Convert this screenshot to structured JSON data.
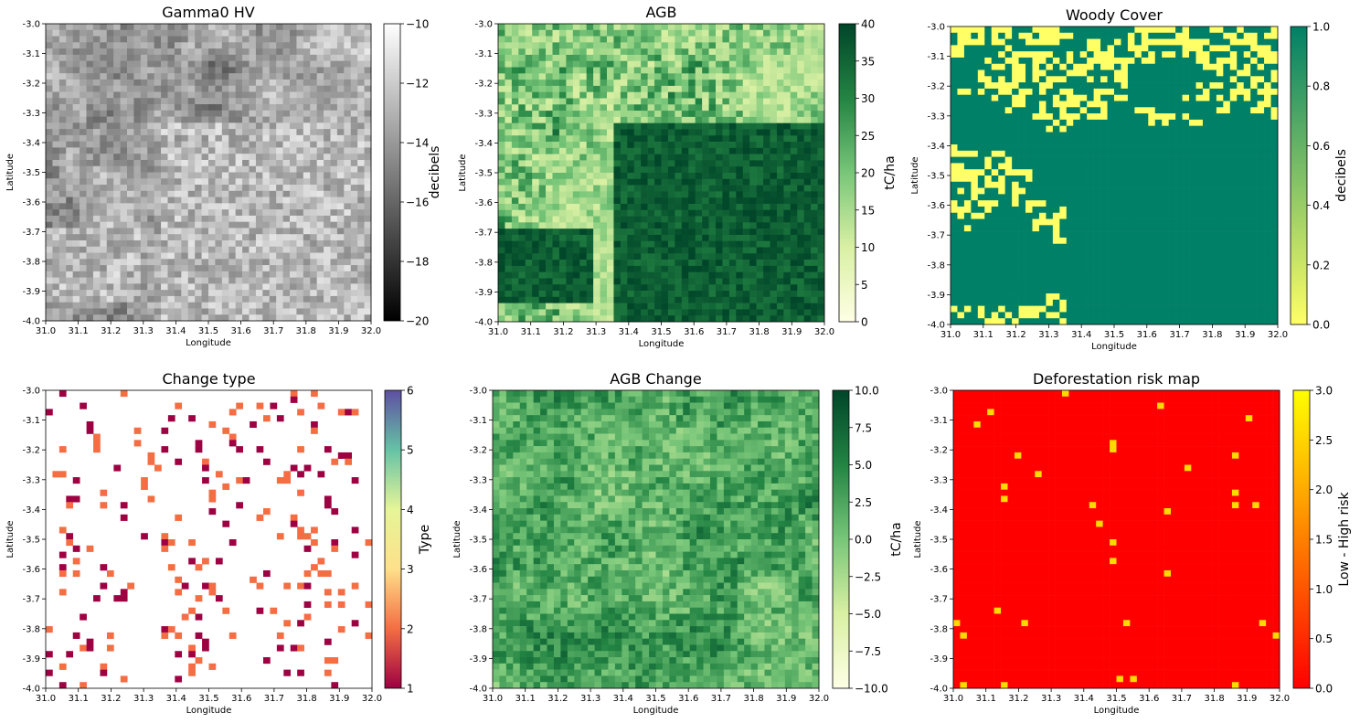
{
  "figure": {
    "panels": [
      {
        "title": "Gamma0 HV",
        "xlabel": "Longitude",
        "ylabel": "Latitude",
        "colorbar": {
          "label": "decibels",
          "min": -20,
          "max": -10,
          "ticks": [
            -20,
            -18,
            -16,
            -14,
            -12,
            -10
          ],
          "tick_labels": [
            "−20",
            "−18",
            "−16",
            "−14",
            "−12",
            "−10"
          ],
          "colormap": [
            "#000000",
            "#ffffff"
          ]
        }
      },
      {
        "title": "AGB",
        "xlabel": "Longitude",
        "ylabel": "Latitude",
        "colorbar": {
          "label": "tC/ha",
          "min": 0,
          "max": 40,
          "ticks": [
            0,
            5,
            10,
            15,
            20,
            25,
            30,
            35,
            40
          ],
          "tick_labels": [
            "0",
            "5",
            "10",
            "15",
            "20",
            "25",
            "30",
            "35",
            "40"
          ],
          "colormap": [
            "#ffffe5",
            "#d9f0a3",
            "#78c679",
            "#238443",
            "#004529"
          ]
        }
      },
      {
        "title": "Woody Cover",
        "xlabel": "Longitude",
        "ylabel": "Latitude",
        "colorbar": {
          "label": "decibels",
          "min": 0,
          "max": 1,
          "ticks": [
            0,
            0.2,
            0.4,
            0.6,
            0.8,
            1.0
          ],
          "tick_labels": [
            "0.0",
            "0.2",
            "0.4",
            "0.6",
            "0.8",
            "1.0"
          ],
          "colormap": [
            "#ffff66",
            "#008066"
          ]
        }
      },
      {
        "title": "Change type",
        "xlabel": "Longitude",
        "ylabel": "Latitude",
        "colorbar": {
          "label": "Type",
          "min": 1,
          "max": 6,
          "ticks": [
            1,
            2,
            3,
            4,
            5,
            6
          ],
          "tick_labels": [
            "1",
            "2",
            "3",
            "4",
            "5",
            "6"
          ],
          "colormap": [
            "#9e0142",
            "#f46d43",
            "#fee08b",
            "#e6f598",
            "#66c2a5",
            "#5e4fa2"
          ]
        }
      },
      {
        "title": "AGB Change",
        "xlabel": "Longitude",
        "ylabel": "Latitude",
        "colorbar": {
          "label": "tC/ha",
          "min": -10,
          "max": 10,
          "ticks": [
            -10,
            -7.5,
            -5,
            -2.5,
            0,
            2.5,
            5,
            7.5,
            10
          ],
          "tick_labels": [
            "−10.0",
            "−7.5",
            "−5.0",
            "−2.5",
            "0.0",
            "2.5",
            "5.0",
            "7.5",
            "10.0"
          ],
          "colormap": [
            "#ffffe5",
            "#d9f0a3",
            "#78c679",
            "#238443",
            "#004529"
          ]
        }
      },
      {
        "title": "Deforestation risk map",
        "xlabel": "Longitude",
        "ylabel": "Latitude",
        "colorbar": {
          "label": "Low - High risk",
          "min": 0,
          "max": 3,
          "ticks": [
            0,
            0.5,
            1.0,
            1.5,
            2.0,
            2.5,
            3.0
          ],
          "tick_labels": [
            "0.0",
            "0.5",
            "1.0",
            "1.5",
            "2.0",
            "2.5",
            "3.0"
          ],
          "colormap": [
            "#ff0000",
            "#ff8000",
            "#ffff00"
          ]
        }
      }
    ],
    "x_ticks": [
      31.0,
      31.1,
      31.2,
      31.3,
      31.4,
      31.5,
      31.6,
      31.7,
      31.8,
      31.9,
      32.0
    ],
    "x_tick_labels": [
      "31.0",
      "31.1",
      "31.2",
      "31.3",
      "31.4",
      "31.5",
      "31.6",
      "31.7",
      "31.8",
      "31.9",
      "32.0"
    ],
    "y_ticks": [
      -3.0,
      -3.1,
      -3.2,
      -3.3,
      -3.4,
      -3.5,
      -3.6,
      -3.7,
      -3.8,
      -3.9,
      -4.0
    ],
    "y_tick_labels": [
      "-3.0",
      "-3.1",
      "-3.2",
      "-3.3",
      "-3.4",
      "-3.5",
      "-3.6",
      "-3.7",
      "-3.8",
      "-3.9",
      "-4.0"
    ]
  },
  "chart_data": [
    {
      "type": "heatmap",
      "title": "Gamma0 HV",
      "xlabel": "Longitude",
      "ylabel": "Latitude",
      "xlim": [
        31.0,
        32.0
      ],
      "ylim": [
        -4.0,
        -3.0
      ],
      "value_range": [
        -20,
        -10
      ],
      "colorbar_label": "decibels"
    },
    {
      "type": "heatmap",
      "title": "AGB",
      "xlabel": "Longitude",
      "ylabel": "Latitude",
      "xlim": [
        31.0,
        32.0
      ],
      "ylim": [
        -4.0,
        -3.0
      ],
      "value_range": [
        0,
        40
      ],
      "colorbar_label": "tC/ha"
    },
    {
      "type": "heatmap",
      "title": "Woody Cover",
      "xlabel": "Longitude",
      "ylabel": "Latitude",
      "xlim": [
        31.0,
        32.0
      ],
      "ylim": [
        -4.0,
        -3.0
      ],
      "value_range": [
        0.0,
        1.0
      ],
      "colorbar_label": "decibels"
    },
    {
      "type": "heatmap",
      "title": "Change type",
      "xlabel": "Longitude",
      "ylabel": "Latitude",
      "xlim": [
        31.0,
        32.0
      ],
      "ylim": [
        -4.0,
        -3.0
      ],
      "value_range": [
        1,
        6
      ],
      "colorbar_label": "Type"
    },
    {
      "type": "heatmap",
      "title": "AGB Change",
      "xlabel": "Longitude",
      "ylabel": "Latitude",
      "xlim": [
        31.0,
        32.0
      ],
      "ylim": [
        -4.0,
        -3.0
      ],
      "value_range": [
        -10.0,
        10.0
      ],
      "colorbar_label": "tC/ha"
    },
    {
      "type": "heatmap",
      "title": "Deforestation risk map",
      "xlabel": "Longitude",
      "ylabel": "Latitude",
      "xlim": [
        31.0,
        32.0
      ],
      "ylim": [
        -4.0,
        -3.0
      ],
      "value_range": [
        0.0,
        3.0
      ],
      "colorbar_label": "Low - High risk"
    }
  ]
}
